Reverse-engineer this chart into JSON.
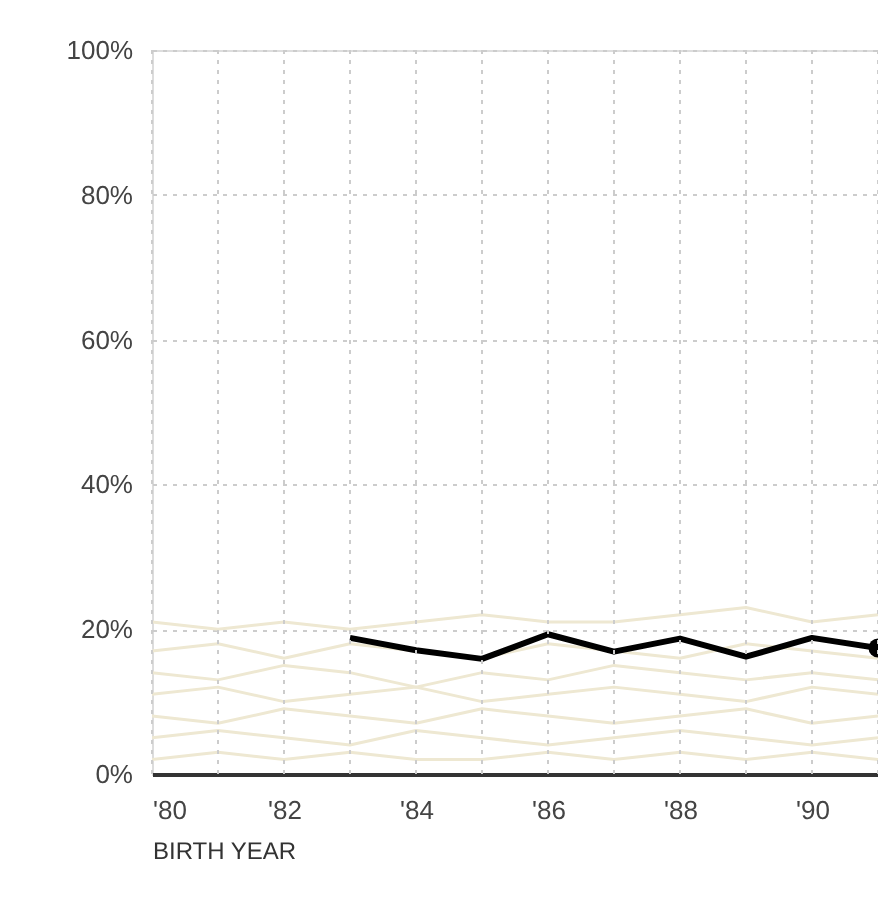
{
  "chart_data": {
    "type": "line",
    "xlabel": "BIRTH YEAR",
    "x": [
      1980,
      1981,
      1982,
      1983,
      1984,
      1985,
      1986,
      1987,
      1988,
      1989,
      1990,
      1991
    ],
    "xlim": [
      1980,
      1991
    ],
    "xticks": [
      {
        "value": 1980,
        "label": "'80"
      },
      {
        "value": 1981,
        "label": null
      },
      {
        "value": 1982,
        "label": "'82"
      },
      {
        "value": 1983,
        "label": null
      },
      {
        "value": 1984,
        "label": "'84"
      },
      {
        "value": 1985,
        "label": null
      },
      {
        "value": 1986,
        "label": "'86"
      },
      {
        "value": 1987,
        "label": null
      },
      {
        "value": 1988,
        "label": "'88"
      },
      {
        "value": 1989,
        "label": null
      },
      {
        "value": 1990,
        "label": "'90"
      },
      {
        "value": 1991,
        "label": null
      }
    ],
    "ylim": [
      0,
      100
    ],
    "yticks": [
      {
        "value": 0,
        "label": "0%"
      },
      {
        "value": 20,
        "label": "20%"
      },
      {
        "value": 40,
        "label": "40%"
      },
      {
        "value": 60,
        "label": "60%"
      },
      {
        "value": 80,
        "label": "80%"
      },
      {
        "value": 100,
        "label": "100%"
      }
    ],
    "grid": true,
    "series": [
      {
        "color": "#eee8d2",
        "values": [
          21,
          20,
          21,
          20,
          21,
          22,
          21,
          21,
          22,
          23,
          21,
          22
        ]
      },
      {
        "color": "#eee8d2",
        "values": [
          17,
          18,
          16,
          18,
          17,
          16,
          18,
          17,
          16,
          18,
          17,
          16
        ]
      },
      {
        "color": "#eee8d2",
        "values": [
          14,
          13,
          15,
          14,
          12,
          14,
          13,
          15,
          14,
          13,
          14,
          13
        ]
      },
      {
        "color": "#eee8d2",
        "values": [
          11,
          12,
          10,
          11,
          12,
          10,
          11,
          12,
          11,
          10,
          12,
          11
        ]
      },
      {
        "color": "#eee8d2",
        "values": [
          8,
          7,
          9,
          8,
          7,
          9,
          8,
          7,
          8,
          9,
          7,
          8
        ]
      },
      {
        "color": "#eee8d2",
        "values": [
          5,
          6,
          5,
          4,
          6,
          5,
          4,
          5,
          6,
          5,
          4,
          5
        ]
      },
      {
        "color": "#eee8d2",
        "values": [
          2,
          3,
          2,
          3,
          2,
          2,
          3,
          2,
          3,
          2,
          3,
          2
        ]
      },
      {
        "color": "#000000",
        "values": [
          null,
          null,
          null,
          18.8,
          17.1,
          15.9,
          19.3,
          16.9,
          18.7,
          16.2,
          18.8,
          17.4
        ]
      },
      {
        "type": "scatter",
        "marker": "circle",
        "color": "#000000",
        "x": [
          1991
        ],
        "values": [
          17.4
        ]
      }
    ]
  }
}
